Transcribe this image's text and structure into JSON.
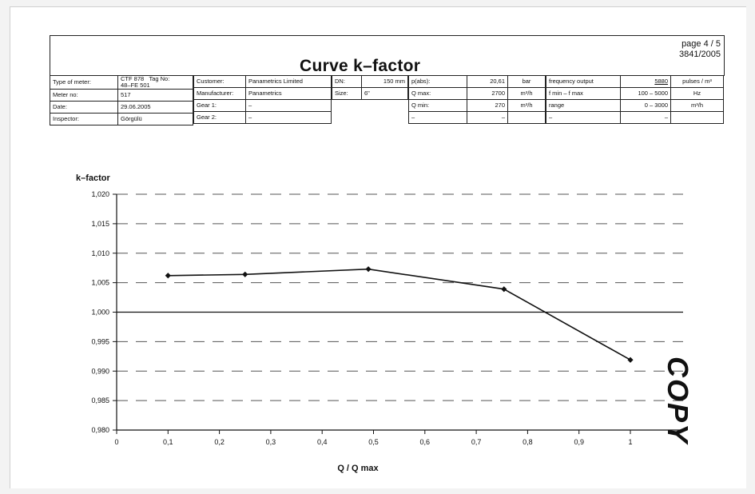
{
  "page": {
    "number": "page  4 / 5",
    "reference": "3841/2005"
  },
  "header": {
    "title": "Curve k–factor"
  },
  "meter_table": {
    "rows": [
      {
        "label": "Type of meter:",
        "value": "CTF 878",
        "extra_label": "Tag No:",
        "extra_value": "48–FE 501"
      },
      {
        "label": "Meter no:",
        "value": "517"
      },
      {
        "label": "Date:",
        "value": "29.06.2005"
      },
      {
        "label": "Inspector:",
        "value": "Görgülü"
      }
    ]
  },
  "customer_table": {
    "rows": [
      {
        "label": "Customer:",
        "value": "Panametrics Limited"
      },
      {
        "label": "Manufacturer:",
        "value": "Panametrics"
      },
      {
        "label": "Gear 1:",
        "value": "–"
      },
      {
        "label": "Gear 2:",
        "value": "–"
      }
    ]
  },
  "size_table": {
    "rows": [
      {
        "label": "DN:",
        "value": "150 mm"
      },
      {
        "label": "Size:",
        "value": "6\""
      }
    ]
  },
  "flow_table": {
    "rows": [
      {
        "label": "p(abs):",
        "value": "20,61",
        "unit": "bar"
      },
      {
        "label": "Q max:",
        "value": "2700",
        "unit": "m³/h"
      },
      {
        "label": "Q min:",
        "value": "270",
        "unit": "m³/h"
      },
      {
        "label": "–",
        "value": "–",
        "unit": ""
      }
    ]
  },
  "frequency_table": {
    "rows": [
      {
        "label": "frequency output",
        "value": "5880",
        "unit": "pulses / m³"
      },
      {
        "label": "f min – f max",
        "value": "100 – 5000",
        "unit": "Hz"
      },
      {
        "label": "range",
        "value": "0 – 3000",
        "unit": "m³/h"
      },
      {
        "label": "–",
        "value": "–",
        "unit": ""
      }
    ]
  },
  "stamp": {
    "text": "COPY"
  },
  "chart_data": {
    "type": "line",
    "title": "",
    "xlabel": "Q / Q max",
    "ylabel": "k–factor",
    "xlim": [
      0,
      1.1
    ],
    "ylim": [
      0.98,
      1.02
    ],
    "x_ticks": [
      "0",
      "0,1",
      "0,2",
      "0,3",
      "0,4",
      "0,5",
      "0,6",
      "0,7",
      "0,8",
      "0,9",
      "1"
    ],
    "y_ticks": [
      "0,980",
      "0,985",
      "0,990",
      "0,995",
      "1,000",
      "1,005",
      "1,010",
      "1,015",
      "1,020"
    ],
    "grid": true,
    "reference_line": 1.0,
    "series": [
      {
        "x": [
          0.1,
          0.25,
          0.49,
          0.754,
          1.0
        ],
        "y": [
          1.0062,
          1.0064,
          1.0073,
          1.0039,
          0.9919
        ]
      }
    ]
  }
}
